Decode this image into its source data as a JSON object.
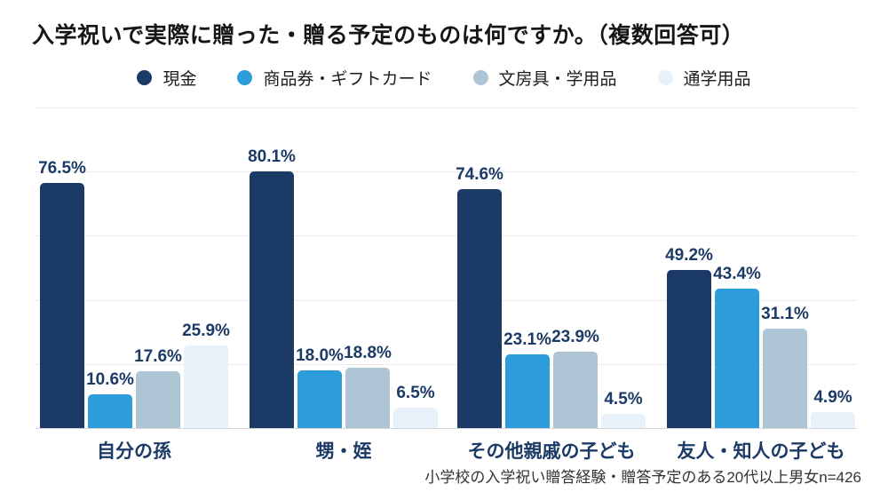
{
  "title": "入学祝いで実際に贈った・贈る予定のものは何ですか。（複数回答可）",
  "colors": {
    "background": "#ffffff",
    "label_navy": "#1b3a66",
    "gridline": "#ebebeb",
    "baseline": "#d5d5d5",
    "title_text": "#161616",
    "source_text": "#333333"
  },
  "chart_data": {
    "type": "bar",
    "title": "入学祝いで実際に贈った・贈る予定のものは何ですか。（複数回答可）",
    "categories": [
      "自分の孫",
      "甥・姪",
      "その他親戚の子ども",
      "友人・知人の子ども"
    ],
    "series": [
      {
        "name": "現金",
        "color": "#1b3a66",
        "values": [
          76.5,
          80.1,
          74.6,
          49.2
        ]
      },
      {
        "name": "商品券・ギフトカード",
        "color": "#2d9cdb",
        "values": [
          10.6,
          18.0,
          23.1,
          43.4
        ]
      },
      {
        "name": "文房具・学用品",
        "color": "#aec5d6",
        "values": [
          17.6,
          18.8,
          23.9,
          31.1
        ]
      },
      {
        "name": "通学用品",
        "color": "#e8f1fa",
        "values": [
          25.9,
          6.5,
          4.5,
          4.9
        ]
      }
    ],
    "value_suffix": "%",
    "value_decimals": 1,
    "ylim": [
      0,
      100
    ],
    "grid_step_pct": 20,
    "grid_on": true,
    "legend_position": "top",
    "source_note": "小学校の入学祝い贈答経験・贈答予定のある20代以上男女n=426"
  }
}
